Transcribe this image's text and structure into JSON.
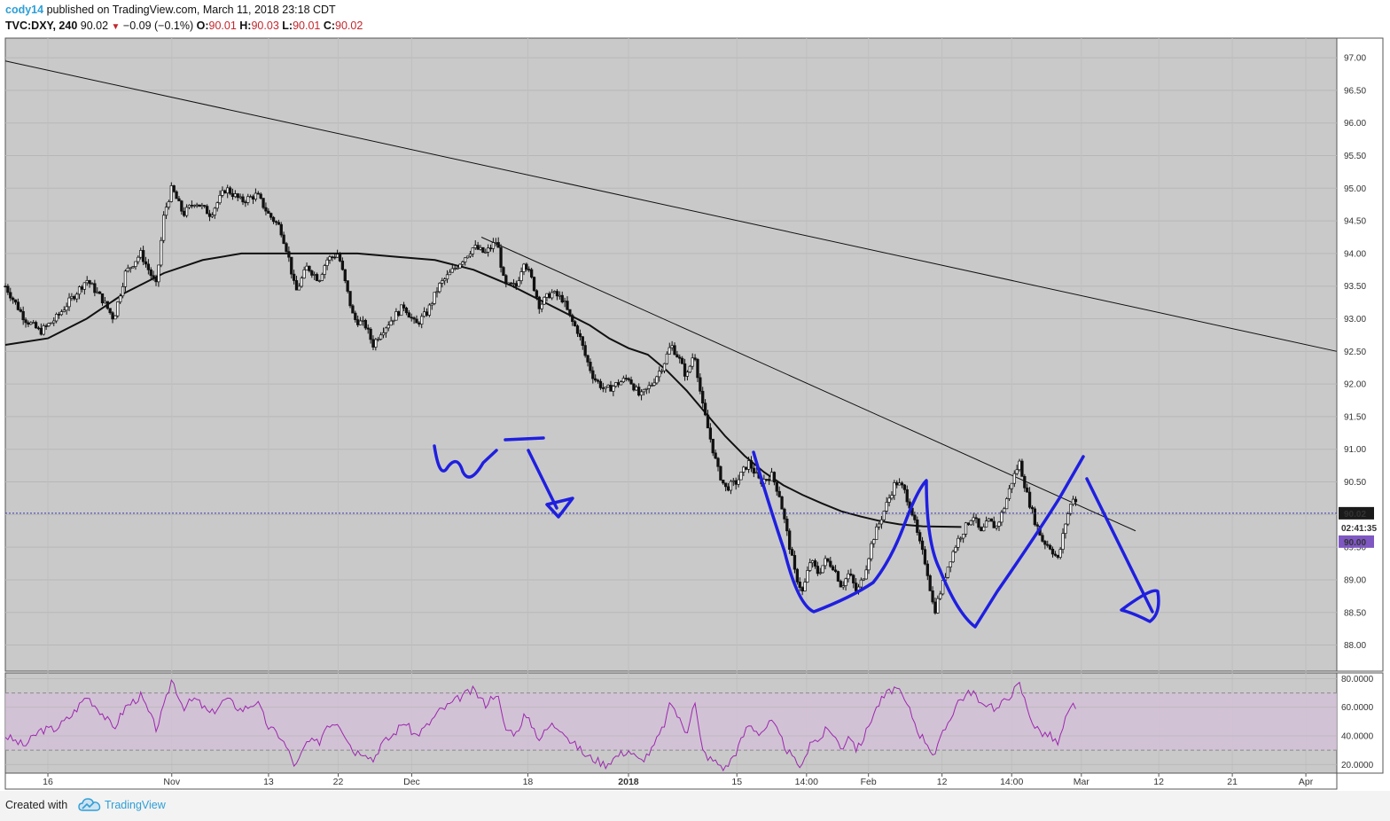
{
  "header": {
    "author": "cody14",
    "published_text": "published on TradingView.com, March 11, 2018 23:18 CDT",
    "symbol": "TVC:DXY, 240",
    "price": "90.02",
    "change": "−0.09 (−0.1%)",
    "ohlc": [
      {
        "k": "O:",
        "v": "90.01"
      },
      {
        "k": "H:",
        "v": "90.03"
      },
      {
        "k": "L:",
        "v": "90.01"
      },
      {
        "k": "C:",
        "v": "90.02"
      }
    ]
  },
  "footer": {
    "created": "Created with",
    "brand": "TradingView"
  },
  "colors": {
    "panel": "#c9c9c9",
    "candle": "#111111",
    "ma": "#111111",
    "drawing": "#1f1fe0",
    "rsi": "#9c27b0",
    "rsi_band": "#d4c1d8",
    "price_line": "#3b3bb0",
    "price_label": "#1a1a1a",
    "bid_label": "#7e57c2"
  },
  "chart_data": [
    {
      "type": "candlestick",
      "title": "",
      "y_ticks": [
        "97.00",
        "96.50",
        "96.00",
        "95.50",
        "95.00",
        "94.50",
        "94.00",
        "93.50",
        "93.00",
        "92.50",
        "92.00",
        "91.50",
        "91.00",
        "90.50",
        "90.00",
        "89.50",
        "89.00",
        "88.50",
        "88.00"
      ],
      "ylim": [
        87.6,
        97.3
      ],
      "x_ticks": [
        {
          "label": "16",
          "t": 0.0
        },
        {
          "label": "Nov",
          "t": 16.0
        },
        {
          "label": "13",
          "t": 28.5
        },
        {
          "label": "22",
          "t": 37.5
        },
        {
          "label": "Dec",
          "t": 47.0
        },
        {
          "label": "18",
          "t": 62.0
        },
        {
          "label": "2018",
          "t": 75.0
        },
        {
          "label": "15",
          "t": 89.0
        },
        {
          "label": "14:00",
          "t": 98.0
        },
        {
          "label": "Feb",
          "t": 106.0
        },
        {
          "label": "12",
          "t": 115.5
        },
        {
          "label": "14:00",
          "t": 124.5
        },
        {
          "label": "Mar",
          "t": 133.5
        },
        {
          "label": "12",
          "t": 143.5
        },
        {
          "label": "21",
          "t": 153.0
        },
        {
          "label": "Apr",
          "t": 162.5
        }
      ],
      "x_range": [
        -5.5,
        166.5
      ],
      "price_path": [
        [
          -5.5,
          93.5
        ],
        [
          -3,
          93.0
        ],
        [
          -1,
          92.8
        ],
        [
          1,
          93.0
        ],
        [
          3,
          93.3
        ],
        [
          5,
          93.6
        ],
        [
          7,
          93.3
        ],
        [
          8.5,
          93.0
        ],
        [
          10,
          93.7
        ],
        [
          12,
          94.0
        ],
        [
          14,
          93.5
        ],
        [
          15,
          94.6
        ],
        [
          16,
          95.0
        ],
        [
          17.5,
          94.6
        ],
        [
          19,
          94.8
        ],
        [
          21,
          94.6
        ],
        [
          23,
          95.0
        ],
        [
          25,
          94.8
        ],
        [
          27,
          94.9
        ],
        [
          28.5,
          94.6
        ],
        [
          30,
          94.4
        ],
        [
          31,
          94.0
        ],
        [
          32,
          93.4
        ],
        [
          33.5,
          93.8
        ],
        [
          35,
          93.6
        ],
        [
          36,
          93.9
        ],
        [
          37.5,
          94.0
        ],
        [
          38.5,
          93.5
        ],
        [
          39.5,
          93.0
        ],
        [
          41,
          92.9
        ],
        [
          42,
          92.6
        ],
        [
          43,
          92.8
        ],
        [
          44.5,
          93.0
        ],
        [
          46,
          93.2
        ],
        [
          47.5,
          92.9
        ],
        [
          49,
          93.1
        ],
        [
          50.5,
          93.5
        ],
        [
          52,
          93.7
        ],
        [
          53.5,
          93.9
        ],
        [
          55,
          94.1
        ],
        [
          56.5,
          94.0
        ],
        [
          58,
          94.2
        ],
        [
          59,
          93.5
        ],
        [
          60.5,
          93.5
        ],
        [
          61.5,
          93.9
        ],
        [
          62.5,
          93.6
        ],
        [
          63.5,
          93.2
        ],
        [
          65,
          93.4
        ],
        [
          66.5,
          93.3
        ],
        [
          67.5,
          93.0
        ],
        [
          68.5,
          92.8
        ],
        [
          69.5,
          92.4
        ],
        [
          70.5,
          92.1
        ],
        [
          72,
          91.9
        ],
        [
          73.5,
          92.0
        ],
        [
          75,
          92.1
        ],
        [
          76.5,
          91.8
        ],
        [
          78,
          92.0
        ],
        [
          79.5,
          92.3
        ],
        [
          80.5,
          92.6
        ],
        [
          81.5,
          92.4
        ],
        [
          82.5,
          92.1
        ],
        [
          83.5,
          92.5
        ],
        [
          84.5,
          91.7
        ],
        [
          85.5,
          91.2
        ],
        [
          86.5,
          90.7
        ],
        [
          87.5,
          90.4
        ],
        [
          89,
          90.5
        ],
        [
          90.5,
          90.8
        ],
        [
          92,
          90.5
        ],
        [
          93.5,
          90.6
        ],
        [
          94.5,
          90.3
        ],
        [
          95.5,
          89.7
        ],
        [
          96.5,
          89.1
        ],
        [
          97.5,
          88.8
        ],
        [
          98.5,
          89.3
        ],
        [
          99.5,
          89.1
        ],
        [
          100.5,
          89.3
        ],
        [
          101.5,
          89.2
        ],
        [
          102.5,
          88.9
        ],
        [
          103.5,
          89.1
        ],
        [
          104.5,
          88.8
        ],
        [
          105.5,
          89.1
        ],
        [
          106.5,
          89.6
        ],
        [
          107.5,
          89.9
        ],
        [
          108.5,
          90.2
        ],
        [
          109.5,
          90.5
        ],
        [
          110.5,
          90.4
        ],
        [
          111.5,
          90.1
        ],
        [
          112.5,
          89.6
        ],
        [
          113.5,
          89.2
        ],
        [
          114.5,
          88.5
        ],
        [
          115.5,
          88.9
        ],
        [
          116.5,
          89.3
        ],
        [
          117.5,
          89.6
        ],
        [
          118.5,
          89.8
        ],
        [
          119.5,
          90.0
        ],
        [
          120.5,
          89.7
        ],
        [
          121.5,
          89.9
        ],
        [
          122.5,
          89.8
        ],
        [
          123.5,
          90.1
        ],
        [
          124.5,
          90.5
        ],
        [
          125.5,
          90.8
        ],
        [
          126.5,
          90.3
        ],
        [
          127.5,
          89.9
        ],
        [
          128.5,
          89.6
        ],
        [
          129.5,
          89.5
        ],
        [
          130.5,
          89.3
        ],
        [
          131.5,
          89.9
        ],
        [
          132.5,
          90.3
        ],
        [
          133,
          90.1
        ]
      ],
      "ma_path": [
        [
          -5.5,
          92.6
        ],
        [
          0,
          92.7
        ],
        [
          5,
          93.0
        ],
        [
          10,
          93.4
        ],
        [
          15,
          93.7
        ],
        [
          20,
          93.9
        ],
        [
          25,
          94.0
        ],
        [
          30,
          94.0
        ],
        [
          35,
          94.0
        ],
        [
          40,
          94.0
        ],
        [
          45,
          93.95
        ],
        [
          50,
          93.9
        ],
        [
          55,
          93.75
        ],
        [
          60,
          93.5
        ],
        [
          65,
          93.2
        ],
        [
          70,
          92.9
        ],
        [
          72.5,
          92.7
        ],
        [
          75,
          92.55
        ],
        [
          77.5,
          92.45
        ],
        [
          80,
          92.2
        ],
        [
          82.5,
          91.9
        ],
        [
          85,
          91.55
        ],
        [
          87.5,
          91.2
        ],
        [
          90,
          90.9
        ],
        [
          92.5,
          90.65
        ],
        [
          95,
          90.45
        ],
        [
          97.5,
          90.3
        ],
        [
          100,
          90.17
        ],
        [
          102.5,
          90.05
        ],
        [
          105,
          89.97
        ],
        [
          107.5,
          89.9
        ],
        [
          110,
          89.85
        ],
        [
          113,
          89.82
        ],
        [
          118,
          89.81
        ]
      ],
      "ma_path_note_removed": true,
      "trendlines": [
        {
          "from": [
            -5.5,
            96.95
          ],
          "to": [
            166.5,
            92.5
          ]
        },
        {
          "from": [
            56,
            94.25
          ],
          "to": [
            140.5,
            89.75
          ]
        }
      ],
      "last_price": {
        "value": 90.02,
        "label": "90.02"
      },
      "countdown": "02:41:35",
      "bid_label": "90.00"
    },
    {
      "type": "line",
      "title": "",
      "y_ticks": [
        "80.0000",
        "60.0000",
        "40.0000",
        "20.0000"
      ],
      "ylim": [
        14,
        84
      ],
      "bands": [
        30,
        70
      ],
      "series": [
        {
          "values_path": [
            [
              -5.5,
              40
            ],
            [
              -3,
              33
            ],
            [
              -1,
              44
            ],
            [
              1,
              45
            ],
            [
              3,
              54
            ],
            [
              5,
              68
            ],
            [
              7,
              56
            ],
            [
              8.5,
              45
            ],
            [
              10,
              60
            ],
            [
              12,
              68
            ],
            [
              14,
              45
            ],
            [
              15,
              60
            ],
            [
              16,
              80
            ],
            [
              17.5,
              60
            ],
            [
              19,
              66
            ],
            [
              21,
              55
            ],
            [
              23,
              66
            ],
            [
              25,
              58
            ],
            [
              27,
              64
            ],
            [
              28.5,
              46
            ],
            [
              30,
              40
            ],
            [
              31,
              30
            ],
            [
              32,
              18
            ],
            [
              33.5,
              36
            ],
            [
              35,
              35
            ],
            [
              36,
              48
            ],
            [
              37.5,
              50
            ],
            [
              38.5,
              40
            ],
            [
              39.5,
              29
            ],
            [
              41,
              29
            ],
            [
              42,
              23
            ],
            [
              43,
              34
            ],
            [
              44.5,
              40
            ],
            [
              46,
              50
            ],
            [
              47.5,
              40
            ],
            [
              49,
              47
            ],
            [
              50.5,
              57
            ],
            [
              52,
              62
            ],
            [
              53.5,
              68
            ],
            [
              55,
              72
            ],
            [
              56.5,
              62
            ],
            [
              58,
              71
            ],
            [
              59,
              45
            ],
            [
              60.5,
              42
            ],
            [
              61.5,
              54
            ],
            [
              62.5,
              48
            ],
            [
              63.5,
              38
            ],
            [
              65,
              48
            ],
            [
              66.5,
              45
            ],
            [
              67.5,
              36
            ],
            [
              68.5,
              32
            ],
            [
              69.5,
              26
            ],
            [
              70.5,
              24
            ],
            [
              72,
              20
            ],
            [
              73.5,
              26
            ],
            [
              75,
              30
            ],
            [
              76.5,
              22
            ],
            [
              78,
              30
            ],
            [
              79.5,
              46
            ],
            [
              80.5,
              64
            ],
            [
              81.5,
              52
            ],
            [
              82.5,
              42
            ],
            [
              83.5,
              66
            ],
            [
              84.5,
              30
            ],
            [
              85.5,
              24
            ],
            [
              86.5,
              21
            ],
            [
              87.5,
              17
            ],
            [
              89,
              30
            ],
            [
              90.5,
              48
            ],
            [
              92,
              42
            ],
            [
              93.5,
              50
            ],
            [
              94.5,
              40
            ],
            [
              95.5,
              30
            ],
            [
              96.5,
              22
            ],
            [
              97.5,
              18
            ],
            [
              98.5,
              38
            ],
            [
              99.5,
              36
            ],
            [
              100.5,
              44
            ],
            [
              101.5,
              42
            ],
            [
              102.5,
              30
            ],
            [
              103.5,
              42
            ],
            [
              104.5,
              30
            ],
            [
              105.5,
              40
            ],
            [
              106.5,
              54
            ],
            [
              107.5,
              64
            ],
            [
              108.5,
              70
            ],
            [
              109.5,
              74
            ],
            [
              110.5,
              66
            ],
            [
              111.5,
              56
            ],
            [
              112.5,
              42
            ],
            [
              113.5,
              36
            ],
            [
              114.5,
              26
            ],
            [
              115.5,
              40
            ],
            [
              116.5,
              52
            ],
            [
              117.5,
              64
            ],
            [
              118.5,
              68
            ],
            [
              119.5,
              72
            ],
            [
              120.5,
              60
            ],
            [
              121.5,
              64
            ],
            [
              122.5,
              58
            ],
            [
              123.5,
              64
            ],
            [
              124.5,
              70
            ],
            [
              125.5,
              76
            ],
            [
              126.5,
              60
            ],
            [
              127.5,
              46
            ],
            [
              128.5,
              42
            ],
            [
              129.5,
              40
            ],
            [
              130.5,
              34
            ],
            [
              131.5,
              52
            ],
            [
              132.5,
              62
            ],
            [
              133,
              54
            ]
          ]
        }
      ]
    }
  ]
}
